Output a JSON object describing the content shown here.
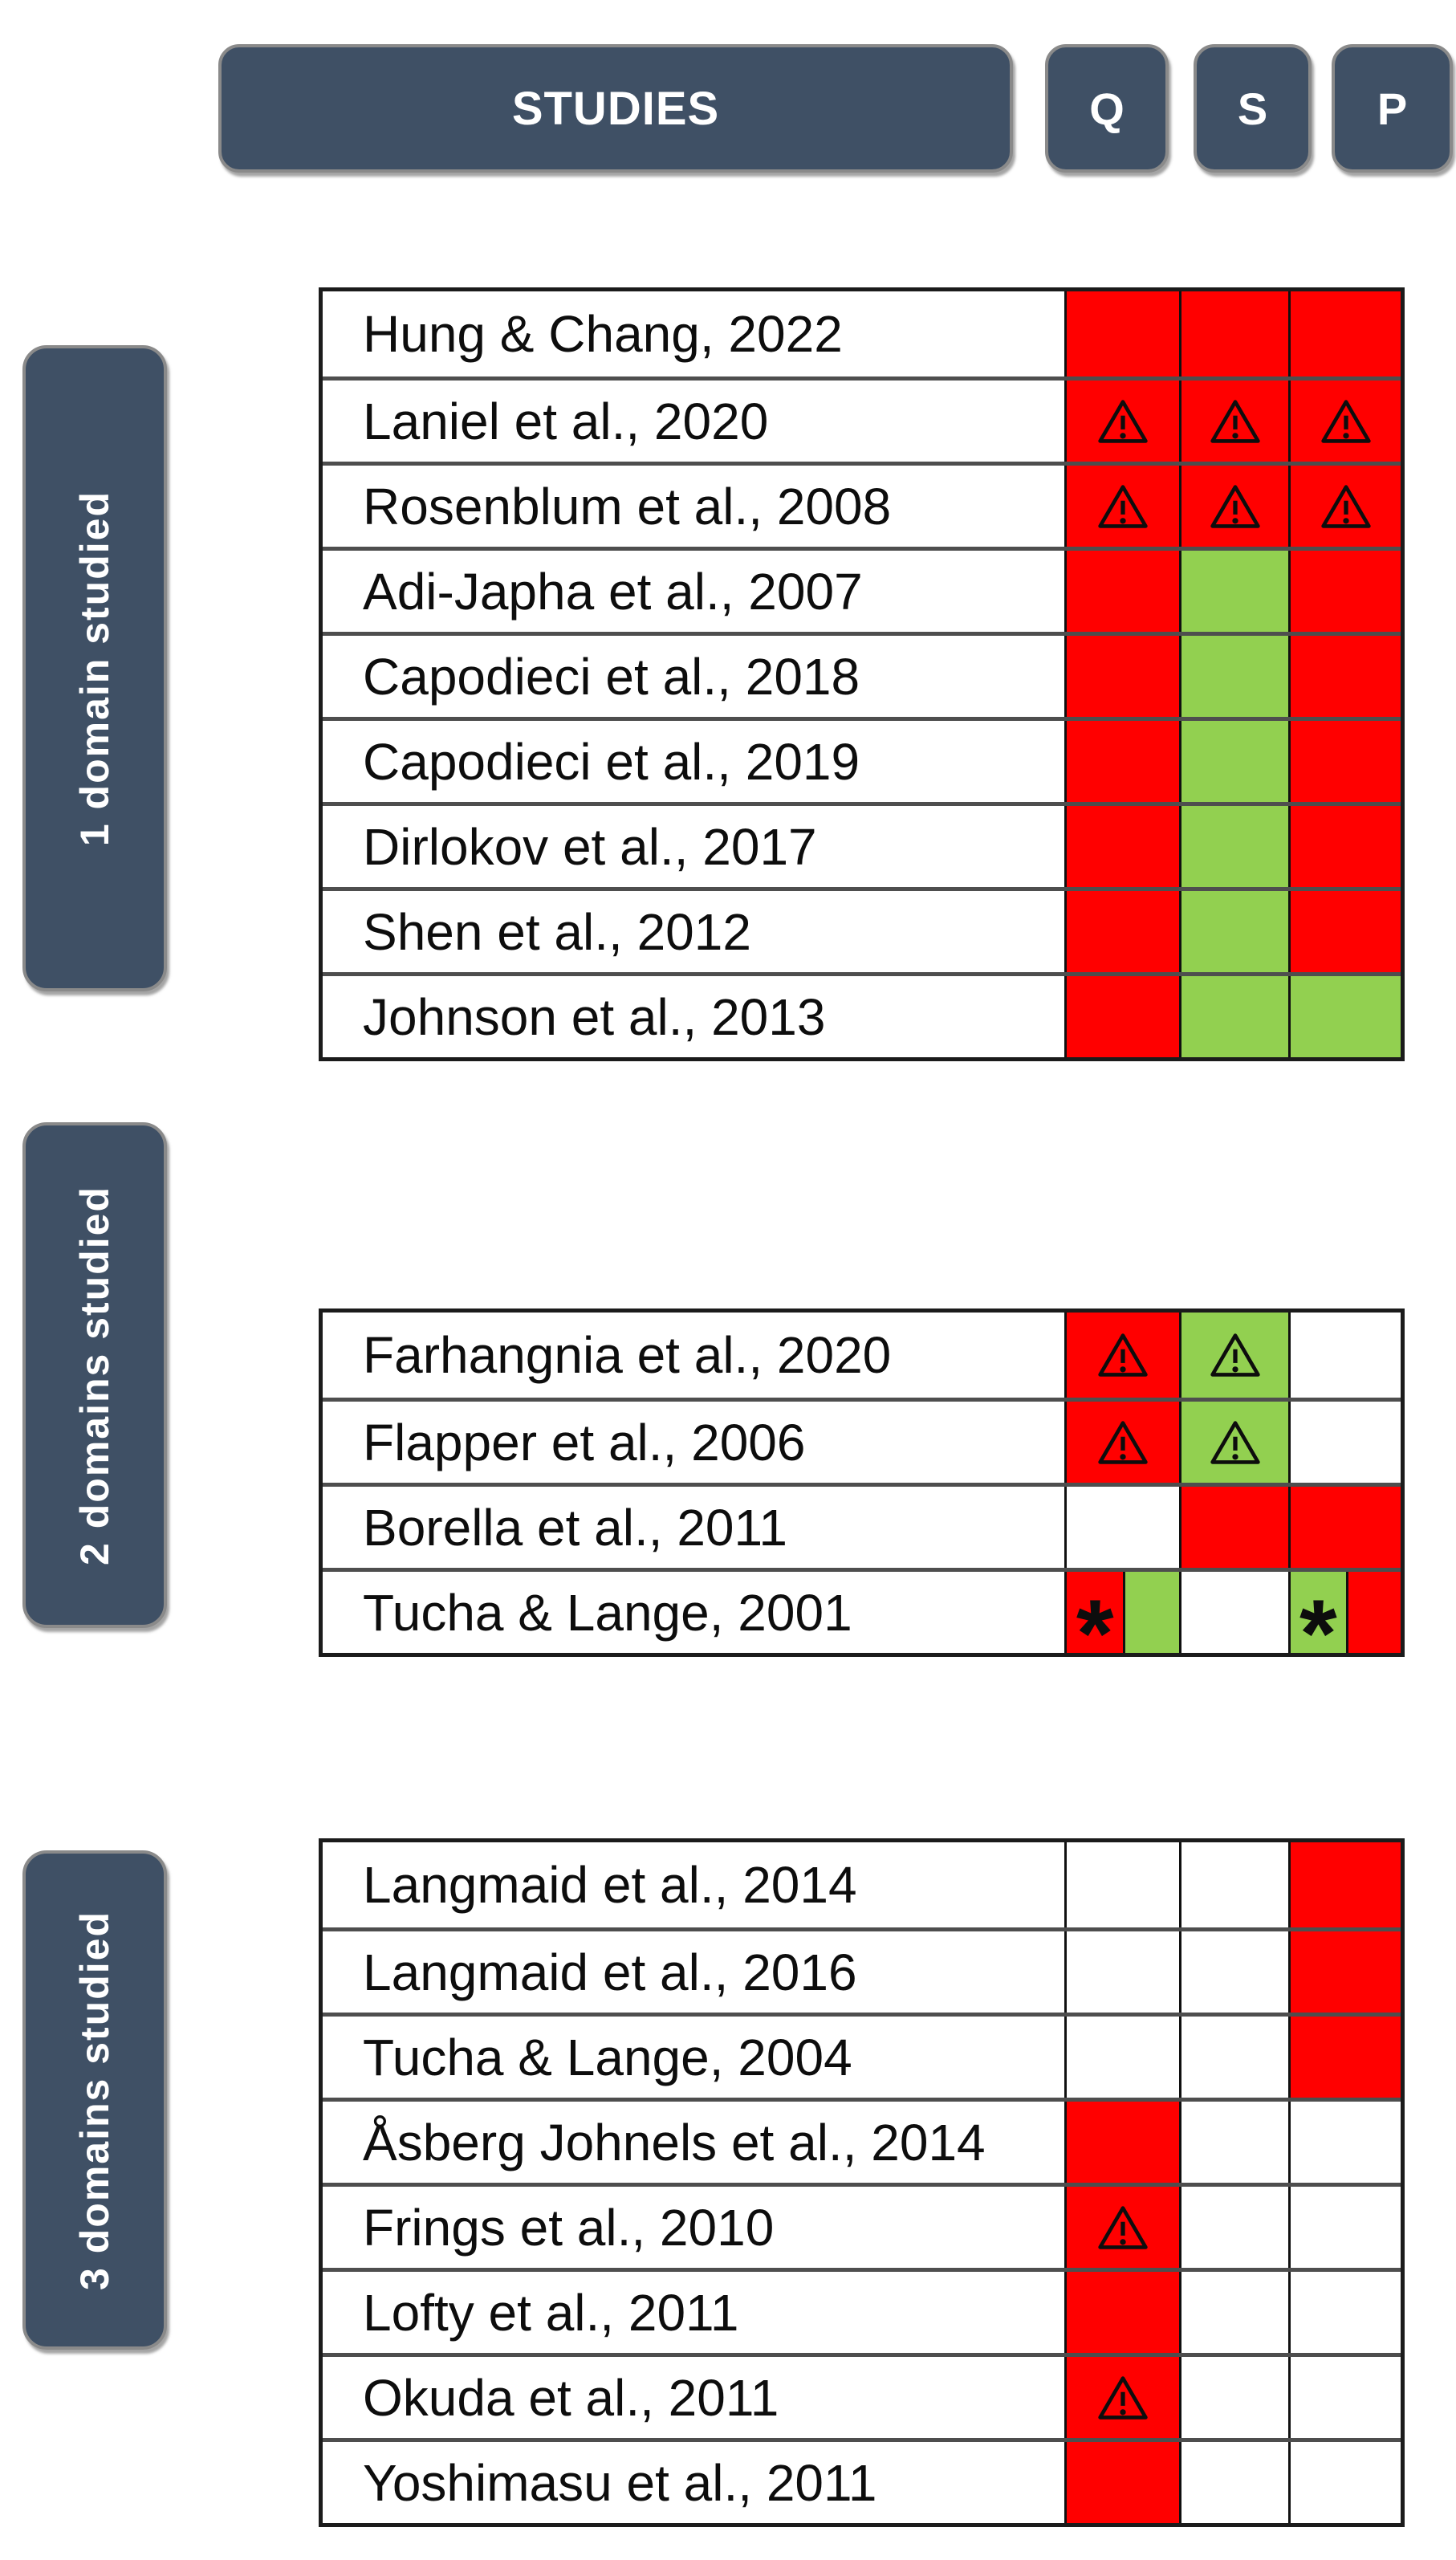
{
  "header": {
    "studies_label": "STUDIES",
    "columns": [
      "Q",
      "S",
      "P"
    ]
  },
  "colors": {
    "red": "#FF0000",
    "green": "#92D050",
    "panel": "#3F5065"
  },
  "groups": [
    {
      "label": "1 domain studied",
      "rows": [
        {
          "study": "Hung & Chang, 2022",
          "cells": [
            {
              "bg": "red"
            },
            {
              "bg": "red"
            },
            {
              "bg": "red"
            }
          ]
        },
        {
          "study": "Laniel et al., 2020",
          "cells": [
            {
              "bg": "red",
              "icon": "warning"
            },
            {
              "bg": "red",
              "icon": "warning"
            },
            {
              "bg": "red",
              "icon": "warning"
            }
          ]
        },
        {
          "study": "Rosenblum et al., 2008",
          "cells": [
            {
              "bg": "red",
              "icon": "warning"
            },
            {
              "bg": "red",
              "icon": "warning"
            },
            {
              "bg": "red",
              "icon": "warning"
            }
          ]
        },
        {
          "study": "Adi-Japha et al., 2007",
          "cells": [
            {
              "bg": "red"
            },
            {
              "bg": "green"
            },
            {
              "bg": "red"
            }
          ]
        },
        {
          "study": "Capodieci et al., 2018",
          "cells": [
            {
              "bg": "red"
            },
            {
              "bg": "green"
            },
            {
              "bg": "red"
            }
          ]
        },
        {
          "study": "Capodieci et al., 2019",
          "cells": [
            {
              "bg": "red"
            },
            {
              "bg": "green"
            },
            {
              "bg": "red"
            }
          ]
        },
        {
          "study": "Dirlokov et al., 2017",
          "cells": [
            {
              "bg": "red"
            },
            {
              "bg": "green"
            },
            {
              "bg": "red"
            }
          ]
        },
        {
          "study": "Shen et al., 2012",
          "cells": [
            {
              "bg": "red"
            },
            {
              "bg": "green"
            },
            {
              "bg": "red"
            }
          ]
        },
        {
          "study": "Johnson et al., 2013",
          "cells": [
            {
              "bg": "red"
            },
            {
              "bg": "green"
            },
            {
              "bg": "green"
            }
          ]
        }
      ]
    },
    {
      "label": "2 domains studied",
      "rows": [
        {
          "study": "Farhangnia et al., 2020",
          "cells": [
            {
              "bg": "red",
              "icon": "warning"
            },
            {
              "bg": "green",
              "icon": "warning"
            },
            {
              "bg": "white"
            }
          ]
        },
        {
          "study": "Flapper et al., 2006",
          "cells": [
            {
              "bg": "red",
              "icon": "warning"
            },
            {
              "bg": "green",
              "icon": "warning"
            },
            {
              "bg": "white"
            }
          ]
        },
        {
          "study": "Borella et al., 2011",
          "cells": [
            {
              "bg": "white"
            },
            {
              "bg": "red"
            },
            {
              "bg": "red"
            }
          ]
        },
        {
          "study": "Tucha & Lange, 2001",
          "cells": [
            {
              "bg": "split",
              "halves": [
                "red",
                "green"
              ],
              "icon": "asterisk"
            },
            {
              "bg": "white"
            },
            {
              "bg": "split",
              "halves": [
                "green",
                "red"
              ],
              "icon": "asterisk"
            }
          ]
        }
      ]
    },
    {
      "label": "3 domains studied",
      "rows": [
        {
          "study": "Langmaid et al., 2014",
          "cells": [
            {
              "bg": "white"
            },
            {
              "bg": "white"
            },
            {
              "bg": "red"
            }
          ]
        },
        {
          "study": "Langmaid et al., 2016",
          "cells": [
            {
              "bg": "white"
            },
            {
              "bg": "white"
            },
            {
              "bg": "red"
            }
          ]
        },
        {
          "study": "Tucha & Lange, 2004",
          "cells": [
            {
              "bg": "white"
            },
            {
              "bg": "white"
            },
            {
              "bg": "red"
            }
          ]
        },
        {
          "study": "Åsberg Johnels et al., 2014",
          "cells": [
            {
              "bg": "red"
            },
            {
              "bg": "white"
            },
            {
              "bg": "white"
            }
          ]
        },
        {
          "study": "Frings et al., 2010",
          "cells": [
            {
              "bg": "red",
              "icon": "warning"
            },
            {
              "bg": "white"
            },
            {
              "bg": "white"
            }
          ]
        },
        {
          "study": "Lofty et al., 2011",
          "cells": [
            {
              "bg": "red"
            },
            {
              "bg": "white"
            },
            {
              "bg": "white"
            }
          ]
        },
        {
          "study": "Okuda et al., 2011",
          "cells": [
            {
              "bg": "red",
              "icon": "warning"
            },
            {
              "bg": "white"
            },
            {
              "bg": "white"
            }
          ]
        },
        {
          "study": "Yoshimasu et al., 2011",
          "cells": [
            {
              "bg": "red"
            },
            {
              "bg": "white"
            },
            {
              "bg": "white"
            }
          ]
        }
      ]
    }
  ]
}
